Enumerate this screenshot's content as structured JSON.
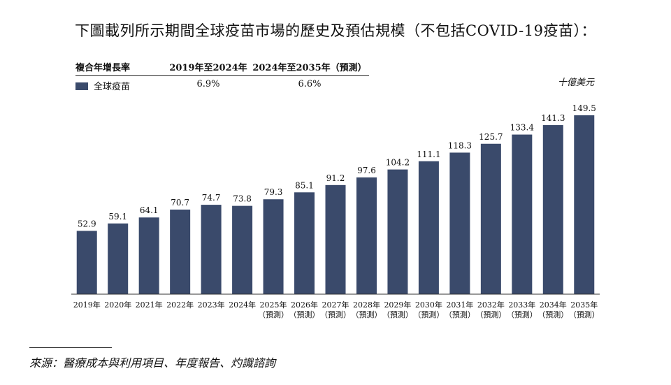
{
  "title": "下圖載列所示期間全球疫苗市場的歷史及預估規模（不包括COVID-19疫苗）：",
  "cagr_table": {
    "header": [
      "複合年增長率",
      "2019年至2024年",
      "2024年至2035年（預測）"
    ],
    "row": {
      "label": "全球疫苗",
      "values": [
        "6.9%",
        "6.6%"
      ]
    }
  },
  "unit": "十億美元",
  "source": "來源：醫療成本與利用項目、年度報告、灼識諮詢",
  "colors": {
    "bar": "#3a4a6b"
  },
  "chart_data": {
    "type": "bar",
    "categories": [
      "2019年",
      "2020年",
      "2021年",
      "2022年",
      "2023年",
      "2024年",
      "2025年",
      "2026年",
      "2027年",
      "2028年",
      "2029年",
      "2030年",
      "2031年",
      "2032年",
      "2033年",
      "2034年",
      "2035年"
    ],
    "forecast_label": "（預測）",
    "forecast_flags": [
      false,
      false,
      false,
      false,
      false,
      false,
      true,
      true,
      true,
      true,
      true,
      true,
      true,
      true,
      true,
      true,
      true
    ],
    "series": [
      {
        "name": "全球疫苗",
        "values": [
          52.9,
          59.1,
          64.1,
          70.7,
          74.7,
          73.8,
          79.3,
          85.1,
          91.2,
          97.6,
          104.2,
          111.1,
          118.3,
          125.7,
          133.4,
          141.3,
          149.5
        ]
      }
    ],
    "value_labels": [
      "52.9",
      "59.1",
      "64.1",
      "70.7",
      "74.7",
      "73.8",
      "79.3",
      "85.1",
      "91.2",
      "97.6",
      "104.2",
      "111.1",
      "118.3",
      "125.7",
      "133.4",
      "141.3",
      "149.5"
    ],
    "ylim": [
      0,
      149.5
    ],
    "grid": false
  }
}
